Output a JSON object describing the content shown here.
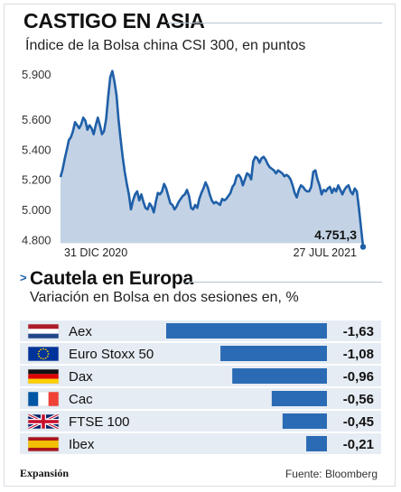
{
  "line_chart": {
    "title": "CASTIGO EN ASIA",
    "subtitle": "Índice de la Bolsa china CSI 300, en puntos",
    "y_ticks": [
      "5.900",
      "5.600",
      "5.400",
      "5.200",
      "5.000",
      "4.800"
    ],
    "x_start_label": "31 DIC 2020",
    "x_end_label": "27 JUL 2021",
    "last_value_label": "4.751,3"
  },
  "bar_chart": {
    "title": "Cautela en Europa",
    "subtitle": "Variación en Bolsa en dos sesiones en, %",
    "rows": [
      {
        "flag": "netherlands-flag-icon",
        "label": "Aex",
        "value_label": "-1,63"
      },
      {
        "flag": "eu-flag-icon",
        "label": "Euro Stoxx 50",
        "value_label": "-1,08"
      },
      {
        "flag": "germany-flag-icon",
        "label": "Dax",
        "value_label": "-0,96"
      },
      {
        "flag": "france-flag-icon",
        "label": "Cac",
        "value_label": "-0,56"
      },
      {
        "flag": "uk-flag-icon",
        "label": "FTSE 100",
        "value_label": "-0,45"
      },
      {
        "flag": "spain-flag-icon",
        "label": "Ibex",
        "value_label": "-0,21"
      }
    ]
  },
  "footer": {
    "brand": "Expansión",
    "source": "Fuente: Bloomberg"
  },
  "colors": {
    "line": "#1f5fa8",
    "area": "#c3d3e5",
    "bar": "#2b6bb5",
    "row_band": "#e6ecf3"
  },
  "chart_data": [
    {
      "type": "area",
      "title": "CASTIGO EN ASIA",
      "subtitle": "Índice de la Bolsa china CSI 300, en puntos",
      "xlabel": "",
      "ylabel": "",
      "x_range": [
        "31 DIC 2020",
        "27 JUL 2021"
      ],
      "y_tick_values": [
        5900,
        5600,
        5400,
        5200,
        5000,
        4800
      ],
      "y_tick_labels": [
        "5.900",
        "5.600",
        "5.400",
        "5.200",
        "5.000",
        "4.800"
      ],
      "ylim": [
        4760,
        5960
      ],
      "grid": false,
      "values": [
        5215,
        5265,
        5335,
        5395,
        5460,
        5480,
        5520,
        5580,
        5560,
        5540,
        5565,
        5610,
        5590,
        5530,
        5560,
        5540,
        5500,
        5560,
        5610,
        5560,
        5500,
        5520,
        5600,
        5750,
        5880,
        5920,
        5850,
        5760,
        5600,
        5470,
        5350,
        5250,
        5170,
        5100,
        5000,
        5060,
        5100,
        5120,
        5060,
        5100,
        5050,
        5010,
        5000,
        5040,
        5020,
        4980,
        5050,
        5110,
        5100,
        5120,
        5170,
        5140,
        5090,
        5040,
        5030,
        5000,
        5020,
        5050,
        5070,
        5090,
        5100,
        5130,
        5090,
        5010,
        5000,
        5030,
        5010,
        5070,
        5110,
        5140,
        5180,
        5150,
        5100,
        5060,
        5040,
        5050,
        5040,
        5030,
        5070,
        5060,
        5070,
        5090,
        5110,
        5150,
        5170,
        5220,
        5230,
        5210,
        5160,
        5200,
        5240,
        5230,
        5200,
        5320,
        5350,
        5340,
        5310,
        5340,
        5350,
        5330,
        5300,
        5280,
        5270,
        5260,
        5240,
        5260,
        5250,
        5240,
        5220,
        5230,
        5220,
        5200,
        5160,
        5110,
        5080,
        5130,
        5160,
        5150,
        5130,
        5120,
        5120,
        5150,
        5250,
        5260,
        5200,
        5160,
        5100,
        5130,
        5120,
        5140,
        5150,
        5110,
        5140,
        5120,
        5160,
        5130,
        5100,
        5130,
        5150,
        5160,
        5120,
        5100,
        5140,
        5120,
        5010,
        4880,
        4751.3
      ],
      "last_value": 4751.3,
      "last_value_label": "4.751,3"
    },
    {
      "type": "bar",
      "orientation": "horizontal",
      "title": "Cautela en Europa",
      "subtitle": "Variación en Bolsa en dos sesiones en, %",
      "xlabel": "",
      "ylabel": "",
      "categories": [
        "Aex",
        "Euro Stoxx 50",
        "Dax",
        "Cac",
        "FTSE 100",
        "Ibex"
      ],
      "values": [
        -1.63,
        -1.08,
        -0.96,
        -0.56,
        -0.45,
        -0.21
      ],
      "value_labels": [
        "-1,63",
        "-1,08",
        "-0,96",
        "-0,56",
        "-0,45",
        "-0,21"
      ],
      "xlim": [
        -1.63,
        0
      ],
      "grid": false
    }
  ]
}
